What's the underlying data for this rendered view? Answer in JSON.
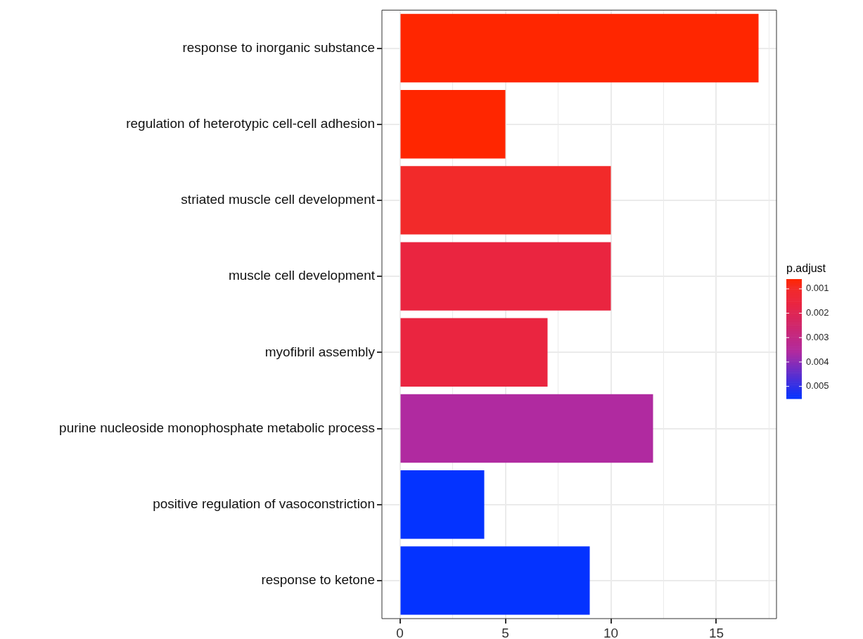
{
  "chart_data": {
    "type": "bar",
    "orientation": "horizontal",
    "clabel": "p.adjust",
    "categories": [
      "response to inorganic substance",
      "regulation of heterotypic cell-cell adhesion",
      "striated muscle cell development",
      "muscle cell development",
      "myofibril assembly",
      "purine nucleoside monophosphate metabolic process",
      "positive regulation of vasoconstriction",
      "response to ketone"
    ],
    "values": [
      17,
      5,
      10,
      10,
      7,
      12,
      4,
      9
    ],
    "cvalues": [
      0.0006,
      0.0006,
      0.001,
      0.0016,
      0.0016,
      0.0036,
      0.0055,
      0.0055
    ],
    "colors": [
      "#ff2600",
      "#ff2600",
      "#f22a2a",
      "#ea2540",
      "#ea2540",
      "#b02aa0",
      "#0433ff",
      "#0433ff"
    ],
    "xlim": [
      -0.85,
      17.85
    ],
    "xticks": [
      0,
      {
        "value": 2.5,
        "label": null
      },
      5,
      {
        "value": 7.5,
        "label": null
      },
      10,
      {
        "value": 12.5,
        "label": null
      },
      15,
      {
        "value": 17.5,
        "label": null
      }
    ],
    "clim": [
      0.0006,
      0.0055
    ],
    "cticks": [
      0.001,
      0.002,
      0.003,
      0.004,
      0.005
    ],
    "grid": true,
    "legend": false
  }
}
